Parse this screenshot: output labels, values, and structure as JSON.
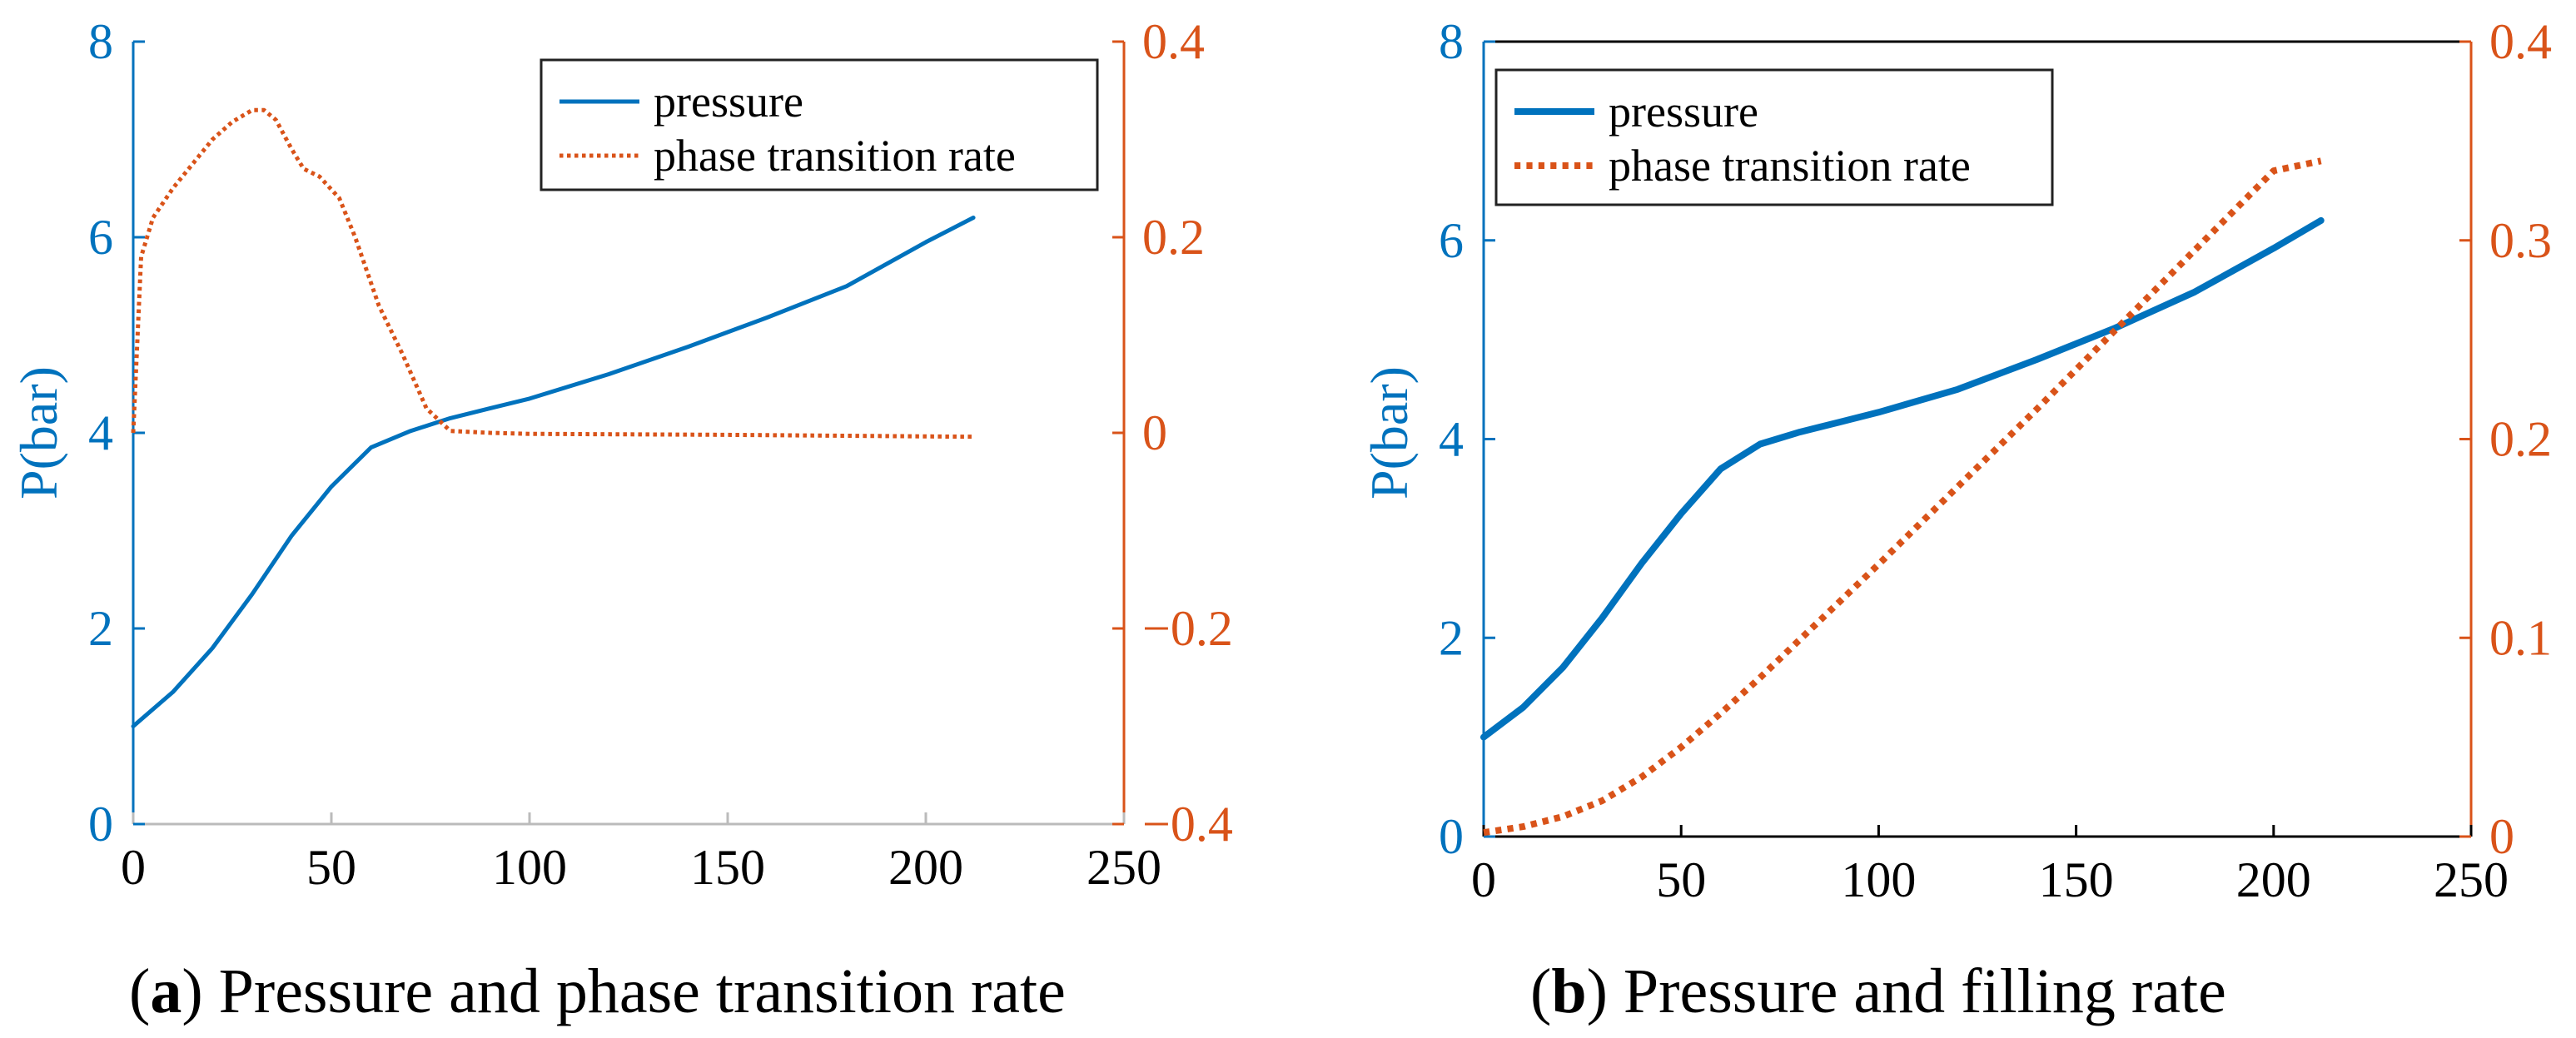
{
  "colors": {
    "pressure": "#0072BD",
    "rate": "#D95319",
    "axis_black": "#000000",
    "axis_grey": "#bbbbbb"
  },
  "captions": {
    "a_letter": "a",
    "a_text": "Pressure and phase transition rate",
    "b_letter": "b",
    "b_text": "Pressure and filling rate"
  },
  "chart_data": [
    {
      "type": "line",
      "ylabel": "P(bar)",
      "xlim": [
        0,
        250
      ],
      "ylim_left": [
        0,
        8
      ],
      "ylim_right": [
        -0.4,
        0.4
      ],
      "x_ticks": [
        "0",
        "50",
        "100",
        "150",
        "200",
        "250"
      ],
      "y_left_ticks": [
        "0",
        "2",
        "4",
        "6",
        "8"
      ],
      "y_right_ticks": [
        "−0.4",
        "−0.2",
        "0",
        "0.2",
        "0.4"
      ],
      "legend_position": "top-right",
      "series": [
        {
          "name": "pressure",
          "axis": "left",
          "style": "solid",
          "x": [
            0,
            10,
            20,
            30,
            40,
            50,
            60,
            70,
            80,
            90,
            100,
            120,
            140,
            160,
            180,
            200,
            212
          ],
          "y": [
            1.0,
            1.35,
            1.8,
            2.35,
            2.95,
            3.45,
            3.85,
            4.02,
            4.15,
            4.25,
            4.35,
            4.6,
            4.88,
            5.18,
            5.5,
            5.95,
            6.2
          ]
        },
        {
          "name": "phase transition rate",
          "axis": "right",
          "style": "dotted",
          "x": [
            0,
            2,
            5,
            10,
            15,
            20,
            25,
            30,
            33,
            36,
            40,
            43,
            47,
            52,
            56,
            62,
            68,
            74,
            80,
            90,
            100,
            150,
            212
          ],
          "y": [
            0.0,
            0.18,
            0.22,
            0.25,
            0.275,
            0.3,
            0.318,
            0.33,
            0.33,
            0.32,
            0.29,
            0.27,
            0.262,
            0.24,
            0.2,
            0.13,
            0.08,
            0.025,
            0.002,
            0.0,
            -0.001,
            -0.002,
            -0.004
          ]
        }
      ]
    },
    {
      "type": "line",
      "ylabel": "P(bar)",
      "xlim": [
        0,
        250
      ],
      "ylim_left": [
        0,
        8
      ],
      "ylim_right": [
        0,
        0.4
      ],
      "x_ticks": [
        "0",
        "50",
        "100",
        "150",
        "200",
        "250"
      ],
      "y_left_ticks": [
        "0",
        "2",
        "4",
        "6",
        "8"
      ],
      "y_right_ticks": [
        "0",
        "0.1",
        "0.2",
        "0.3",
        "0.4"
      ],
      "legend_position": "top-left",
      "series": [
        {
          "name": "pressure",
          "axis": "left",
          "style": "solid",
          "x": [
            0,
            10,
            20,
            30,
            40,
            50,
            60,
            70,
            80,
            90,
            100,
            120,
            140,
            160,
            180,
            200,
            212
          ],
          "y": [
            1.0,
            1.3,
            1.7,
            2.2,
            2.75,
            3.25,
            3.7,
            3.95,
            4.07,
            4.17,
            4.27,
            4.5,
            4.8,
            5.12,
            5.48,
            5.92,
            6.2
          ]
        },
        {
          "name": "phase transition rate",
          "axis": "right",
          "style": "dotted",
          "x": [
            0,
            10,
            20,
            30,
            40,
            50,
            60,
            70,
            80,
            90,
            100,
            120,
            140,
            160,
            180,
            200,
            212
          ],
          "y": [
            0.002,
            0.005,
            0.01,
            0.018,
            0.03,
            0.045,
            0.062,
            0.08,
            0.099,
            0.118,
            0.137,
            0.176,
            0.215,
            0.255,
            0.295,
            0.335,
            0.34
          ]
        }
      ]
    }
  ]
}
